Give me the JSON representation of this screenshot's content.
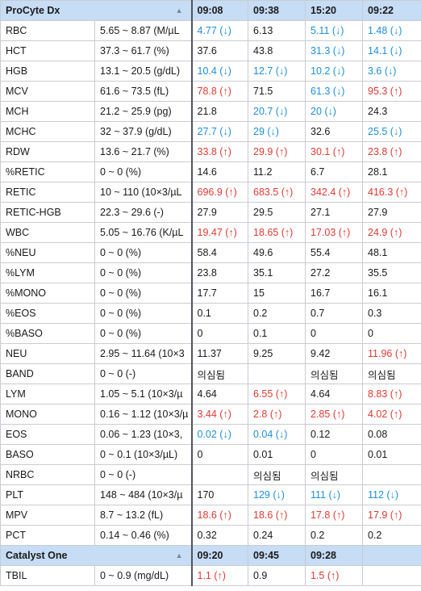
{
  "colors": {
    "header_bg": "#c7dcf5",
    "high": "#e23a32",
    "low": "#1e8fdc",
    "border": "#c9ccd2"
  },
  "flag_symbols": {
    "high": "↑",
    "low": "↓"
  },
  "sections": [
    {
      "title": "ProCyte Dx",
      "toggle_icon": "triangle-up-icon",
      "times": [
        "09:08",
        "09:38",
        "15:20",
        "09:22"
      ],
      "rows": [
        {
          "name": "RBC",
          "range": "5.65 ~ 8.87 (M/µL",
          "values": [
            {
              "v": "4.77",
              "f": "low"
            },
            {
              "v": "6.13",
              "f": ""
            },
            {
              "v": "5.11",
              "f": "low"
            },
            {
              "v": "1.48",
              "f": "low"
            }
          ]
        },
        {
          "name": "HCT",
          "range": "37.3 ~ 61.7 (%)",
          "values": [
            {
              "v": "37.6",
              "f": ""
            },
            {
              "v": "43.8",
              "f": ""
            },
            {
              "v": "31.3",
              "f": "low"
            },
            {
              "v": "14.1",
              "f": "low"
            }
          ]
        },
        {
          "name": "HGB",
          "range": "13.1 ~ 20.5 (g/dL)",
          "values": [
            {
              "v": "10.4",
              "f": "low"
            },
            {
              "v": "12.7",
              "f": "low"
            },
            {
              "v": "10.2",
              "f": "low"
            },
            {
              "v": "3.6",
              "f": "low"
            }
          ]
        },
        {
          "name": "MCV",
          "range": "61.6 ~ 73.5 (fL)",
          "values": [
            {
              "v": "78.8",
              "f": "high"
            },
            {
              "v": "71.5",
              "f": ""
            },
            {
              "v": "61.3",
              "f": "low"
            },
            {
              "v": "95.3",
              "f": "high"
            }
          ]
        },
        {
          "name": "MCH",
          "range": "21.2 ~ 25.9 (pg)",
          "values": [
            {
              "v": "21.8",
              "f": ""
            },
            {
              "v": "20.7",
              "f": "low"
            },
            {
              "v": "20",
              "f": "low"
            },
            {
              "v": "24.3",
              "f": ""
            }
          ]
        },
        {
          "name": "MCHC",
          "range": "32 ~ 37.9 (g/dL)",
          "values": [
            {
              "v": "27.7",
              "f": "low"
            },
            {
              "v": "29",
              "f": "low"
            },
            {
              "v": "32.6",
              "f": ""
            },
            {
              "v": "25.5",
              "f": "low"
            }
          ]
        },
        {
          "name": "RDW",
          "range": "13.6 ~ 21.7 (%)",
          "values": [
            {
              "v": "33.8",
              "f": "high"
            },
            {
              "v": "29.9",
              "f": "high"
            },
            {
              "v": "30.1",
              "f": "high"
            },
            {
              "v": "23.8",
              "f": "high"
            }
          ]
        },
        {
          "name": "%RETIC",
          "range": "0 ~ 0 (%)",
          "values": [
            {
              "v": "14.6",
              "f": ""
            },
            {
              "v": "11.2",
              "f": ""
            },
            {
              "v": "6.7",
              "f": ""
            },
            {
              "v": "28.1",
              "f": ""
            }
          ]
        },
        {
          "name": "RETIC",
          "range": "10 ~ 110 (10×3/µL",
          "values": [
            {
              "v": "696.9",
              "f": "high"
            },
            {
              "v": "683.5",
              "f": "high"
            },
            {
              "v": "342.4",
              "f": "high"
            },
            {
              "v": "416.3",
              "f": "high"
            }
          ]
        },
        {
          "name": "RETIC-HGB",
          "range": "22.3 ~ 29.6 (-)",
          "values": [
            {
              "v": "27.9",
              "f": ""
            },
            {
              "v": "29.5",
              "f": ""
            },
            {
              "v": "27.1",
              "f": ""
            },
            {
              "v": "27.9",
              "f": ""
            }
          ]
        },
        {
          "name": "WBC",
          "range": "5.05 ~ 16.76 (K/µL",
          "values": [
            {
              "v": "19.47",
              "f": "high"
            },
            {
              "v": "18.65",
              "f": "high"
            },
            {
              "v": "17.03",
              "f": "high"
            },
            {
              "v": "24.9",
              "f": "high"
            }
          ]
        },
        {
          "name": "%NEU",
          "range": "0 ~ 0 (%)",
          "values": [
            {
              "v": "58.4",
              "f": ""
            },
            {
              "v": "49.6",
              "f": ""
            },
            {
              "v": "55.4",
              "f": ""
            },
            {
              "v": "48.1",
              "f": ""
            }
          ]
        },
        {
          "name": "%LYM",
          "range": "0 ~ 0 (%)",
          "values": [
            {
              "v": "23.8",
              "f": ""
            },
            {
              "v": "35.1",
              "f": ""
            },
            {
              "v": "27.2",
              "f": ""
            },
            {
              "v": "35.5",
              "f": ""
            }
          ]
        },
        {
          "name": "%MONO",
          "range": "0 ~ 0 (%)",
          "values": [
            {
              "v": "17.7",
              "f": ""
            },
            {
              "v": "15",
              "f": ""
            },
            {
              "v": "16.7",
              "f": ""
            },
            {
              "v": "16.1",
              "f": ""
            }
          ]
        },
        {
          "name": "%EOS",
          "range": "0 ~ 0 (%)",
          "values": [
            {
              "v": "0.1",
              "f": ""
            },
            {
              "v": "0.2",
              "f": ""
            },
            {
              "v": "0.7",
              "f": ""
            },
            {
              "v": "0.3",
              "f": ""
            }
          ]
        },
        {
          "name": "%BASO",
          "range": "0 ~ 0 (%)",
          "values": [
            {
              "v": "0",
              "f": ""
            },
            {
              "v": "0.1",
              "f": ""
            },
            {
              "v": "0",
              "f": ""
            },
            {
              "v": "0",
              "f": ""
            }
          ]
        },
        {
          "name": "NEU",
          "range": "2.95 ~ 11.64 (10×3",
          "values": [
            {
              "v": "11.37",
              "f": ""
            },
            {
              "v": "9.25",
              "f": ""
            },
            {
              "v": "9.42",
              "f": ""
            },
            {
              "v": "11.96",
              "f": "high"
            }
          ]
        },
        {
          "name": "BAND",
          "range": "0 ~ 0 (-)",
          "values": [
            {
              "v": "의심됨",
              "f": ""
            },
            {
              "v": "",
              "f": ""
            },
            {
              "v": "의심됨",
              "f": ""
            },
            {
              "v": "의심됨",
              "f": ""
            }
          ]
        },
        {
          "name": "LYM",
          "range": "1.05 ~ 5.1 (10×3/µ",
          "values": [
            {
              "v": "4.64",
              "f": ""
            },
            {
              "v": "6.55",
              "f": "high"
            },
            {
              "v": "4.64",
              "f": ""
            },
            {
              "v": "8.83",
              "f": "high"
            }
          ]
        },
        {
          "name": "MONO",
          "range": "0.16 ~ 1.12 (10×3/µ",
          "values": [
            {
              "v": "3.44",
              "f": "high"
            },
            {
              "v": "2.8",
              "f": "high"
            },
            {
              "v": "2.85",
              "f": "high"
            },
            {
              "v": "4.02",
              "f": "high"
            }
          ]
        },
        {
          "name": "EOS",
          "range": "0.06 ~ 1.23 (10×3,",
          "values": [
            {
              "v": "0.02",
              "f": "low"
            },
            {
              "v": "0.04",
              "f": "low"
            },
            {
              "v": "0.12",
              "f": ""
            },
            {
              "v": "0.08",
              "f": ""
            }
          ]
        },
        {
          "name": "BASO",
          "range": "0 ~ 0.1 (10×3/µL)",
          "values": [
            {
              "v": "0",
              "f": ""
            },
            {
              "v": "0.01",
              "f": ""
            },
            {
              "v": "0",
              "f": ""
            },
            {
              "v": "0.01",
              "f": ""
            }
          ]
        },
        {
          "name": "NRBC",
          "range": "0 ~ 0 (-)",
          "values": [
            {
              "v": "",
              "f": ""
            },
            {
              "v": "의심됨",
              "f": ""
            },
            {
              "v": "의심됨",
              "f": ""
            },
            {
              "v": "",
              "f": ""
            }
          ]
        },
        {
          "name": "PLT",
          "range": "148 ~ 484 (10×3/µ",
          "values": [
            {
              "v": "170",
              "f": ""
            },
            {
              "v": "129",
              "f": "low"
            },
            {
              "v": "111",
              "f": "low"
            },
            {
              "v": "112",
              "f": "low"
            }
          ]
        },
        {
          "name": "MPV",
          "range": "8.7 ~ 13.2 (fL)",
          "values": [
            {
              "v": "18.6",
              "f": "high"
            },
            {
              "v": "18.6",
              "f": "high"
            },
            {
              "v": "17.8",
              "f": "high"
            },
            {
              "v": "17.9",
              "f": "high"
            }
          ]
        },
        {
          "name": "PCT",
          "range": "0.14 ~ 0.46 (%)",
          "values": [
            {
              "v": "0.32",
              "f": ""
            },
            {
              "v": "0.24",
              "f": ""
            },
            {
              "v": "0.2",
              "f": ""
            },
            {
              "v": "0.2",
              "f": ""
            }
          ]
        }
      ]
    },
    {
      "title": "Catalyst One",
      "toggle_icon": "triangle-up-icon",
      "times": [
        "09:20",
        "09:45",
        "09:28",
        ""
      ],
      "rows": [
        {
          "name": "TBIL",
          "range": "0 ~ 0.9 (mg/dL)",
          "values": [
            {
              "v": "1.1",
              "f": "high"
            },
            {
              "v": "0.9",
              "f": ""
            },
            {
              "v": "1.5",
              "f": "high"
            },
            {
              "v": "",
              "f": ""
            }
          ]
        }
      ]
    }
  ]
}
